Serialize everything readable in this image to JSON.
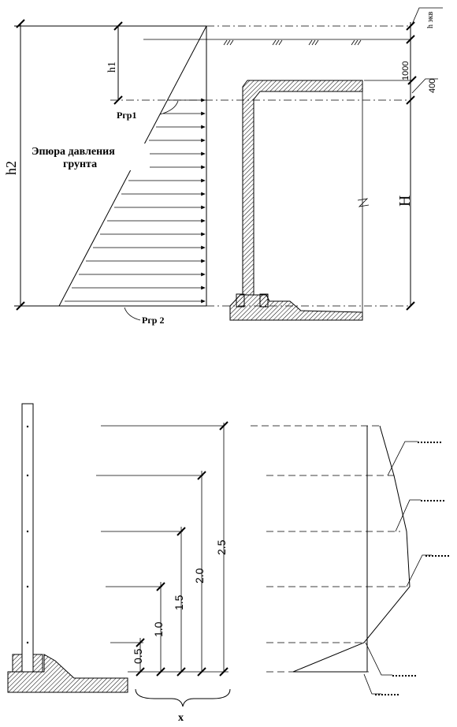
{
  "top_drawing": {
    "labels": {
      "h_ekv": "h экв",
      "h1": "h1",
      "h2": "h2",
      "dim_1000": "1000",
      "dim_400": "400",
      "H": "H",
      "p_gr1": "Pгр1",
      "p_gr2": "Ргр 2",
      "epure_line1": "Эпюра давления",
      "epure_line2": "грунта"
    }
  },
  "bottom_drawing": {
    "dimension_labels": [
      "0.5",
      "1.0",
      "1.5",
      "2.0",
      "2.5"
    ],
    "x_label": "x"
  }
}
